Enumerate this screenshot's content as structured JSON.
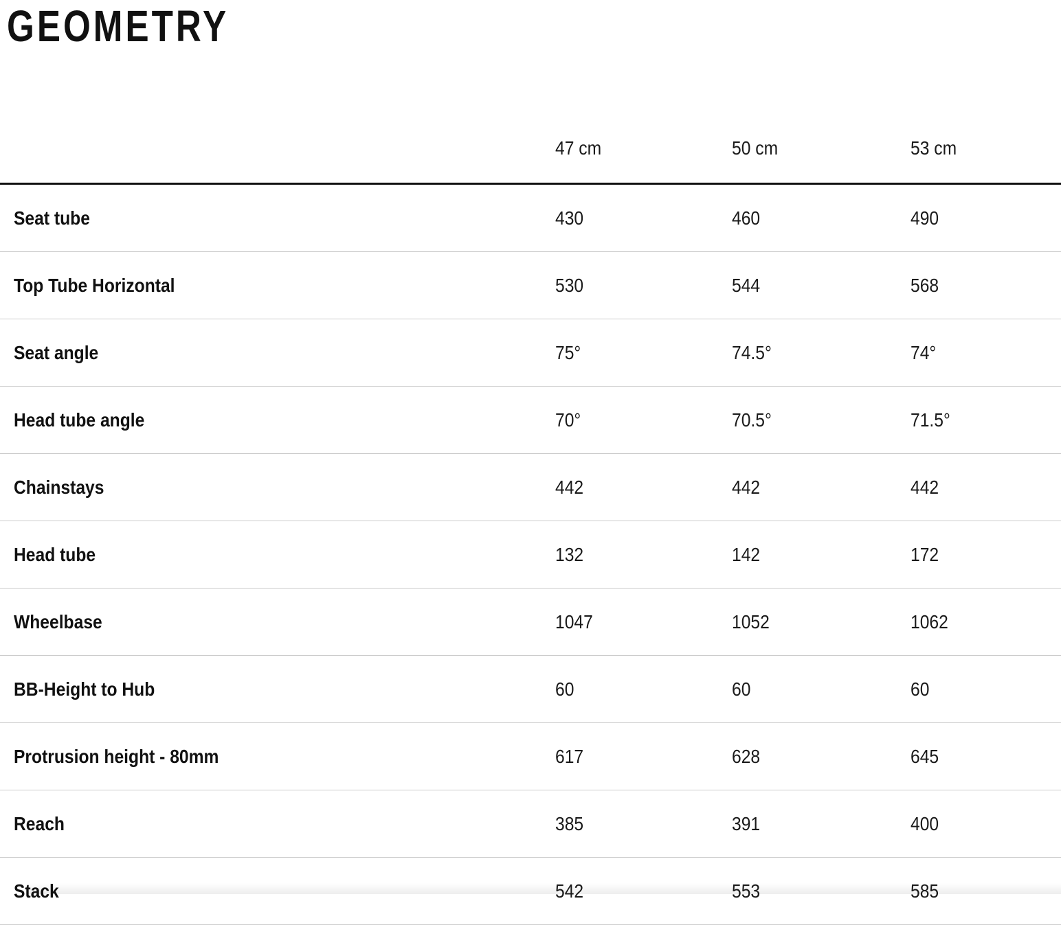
{
  "page": {
    "title": "GEOMETRY"
  },
  "colors": {
    "text": "#1a1a1a",
    "heading": "#111111",
    "header_rule": "#111111",
    "row_divider": "#cccccc",
    "background": "#ffffff"
  },
  "table": {
    "columns": [
      "47 cm",
      "50 cm",
      "53 cm"
    ],
    "rows": [
      {
        "label": "Seat tube",
        "values": [
          "430",
          "460",
          "490"
        ]
      },
      {
        "label": "Top Tube Horizontal",
        "values": [
          "530",
          "544",
          "568"
        ]
      },
      {
        "label": "Seat angle",
        "values": [
          "75°",
          "74.5°",
          "74°"
        ]
      },
      {
        "label": "Head tube angle",
        "values": [
          "70°",
          "70.5°",
          "71.5°"
        ]
      },
      {
        "label": "Chainstays",
        "values": [
          "442",
          "442",
          "442"
        ]
      },
      {
        "label": "Head tube",
        "values": [
          "132",
          "142",
          "172"
        ]
      },
      {
        "label": "Wheelbase",
        "values": [
          "1047",
          "1052",
          "1062"
        ]
      },
      {
        "label": "BB-Height to Hub",
        "values": [
          "60",
          "60",
          "60"
        ]
      },
      {
        "label": "Protrusion height - 80mm",
        "values": [
          "617",
          "628",
          "645"
        ]
      },
      {
        "label": "Reach",
        "values": [
          "385",
          "391",
          "400"
        ]
      },
      {
        "label": "Stack",
        "values": [
          "542",
          "553",
          "585"
        ]
      }
    ]
  }
}
